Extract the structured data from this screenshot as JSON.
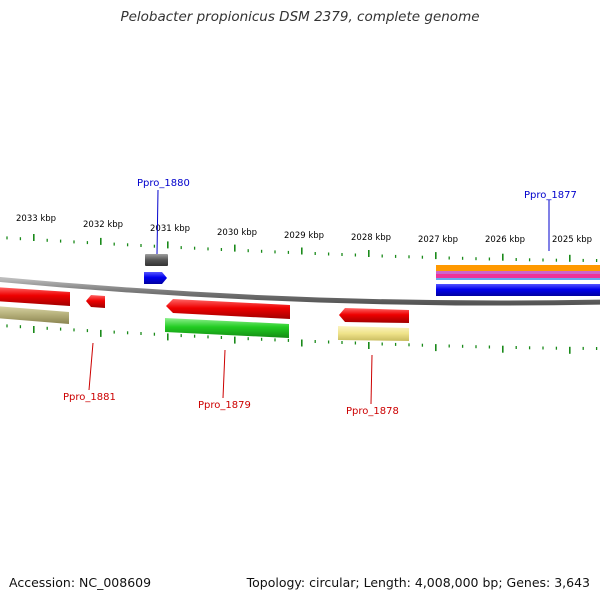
{
  "header": {
    "title": "Pelobacter propionicus DSM 2379, complete genome"
  },
  "footer": {
    "accession": "Accession: NC_008609",
    "topology": "Topology: circular; Length: 4,008,000 bp; Genes: 3,643"
  },
  "scale": {
    "tick_labels": [
      "2033 kbp",
      "2032 kbp",
      "2031 kbp",
      "2030 kbp",
      "2029 kbp",
      "2028 kbp",
      "2027 kbp",
      "2026 kbp",
      "2025 kbp"
    ]
  },
  "genes": {
    "top_labels": [
      "Ppro_1880",
      "Ppro_1877"
    ],
    "bottom_labels": [
      "Ppro_1881",
      "Ppro_1879",
      "Ppro_1878"
    ]
  },
  "colors": {
    "backbone": "#8c8c8c",
    "tick": "#1a8a1a",
    "forward_label": "#0000cc",
    "reverse_label": "#cc0000",
    "cds_red": "#ee0000",
    "cds_blue": "#0000ee",
    "cds_green": "#22cc22",
    "cds_gray": "#555555",
    "cds_olive": "#b3ad78",
    "cds_yellow": "#efe38a",
    "cds_orange": "#ff9900",
    "cds_magenta": "#ee3399"
  }
}
